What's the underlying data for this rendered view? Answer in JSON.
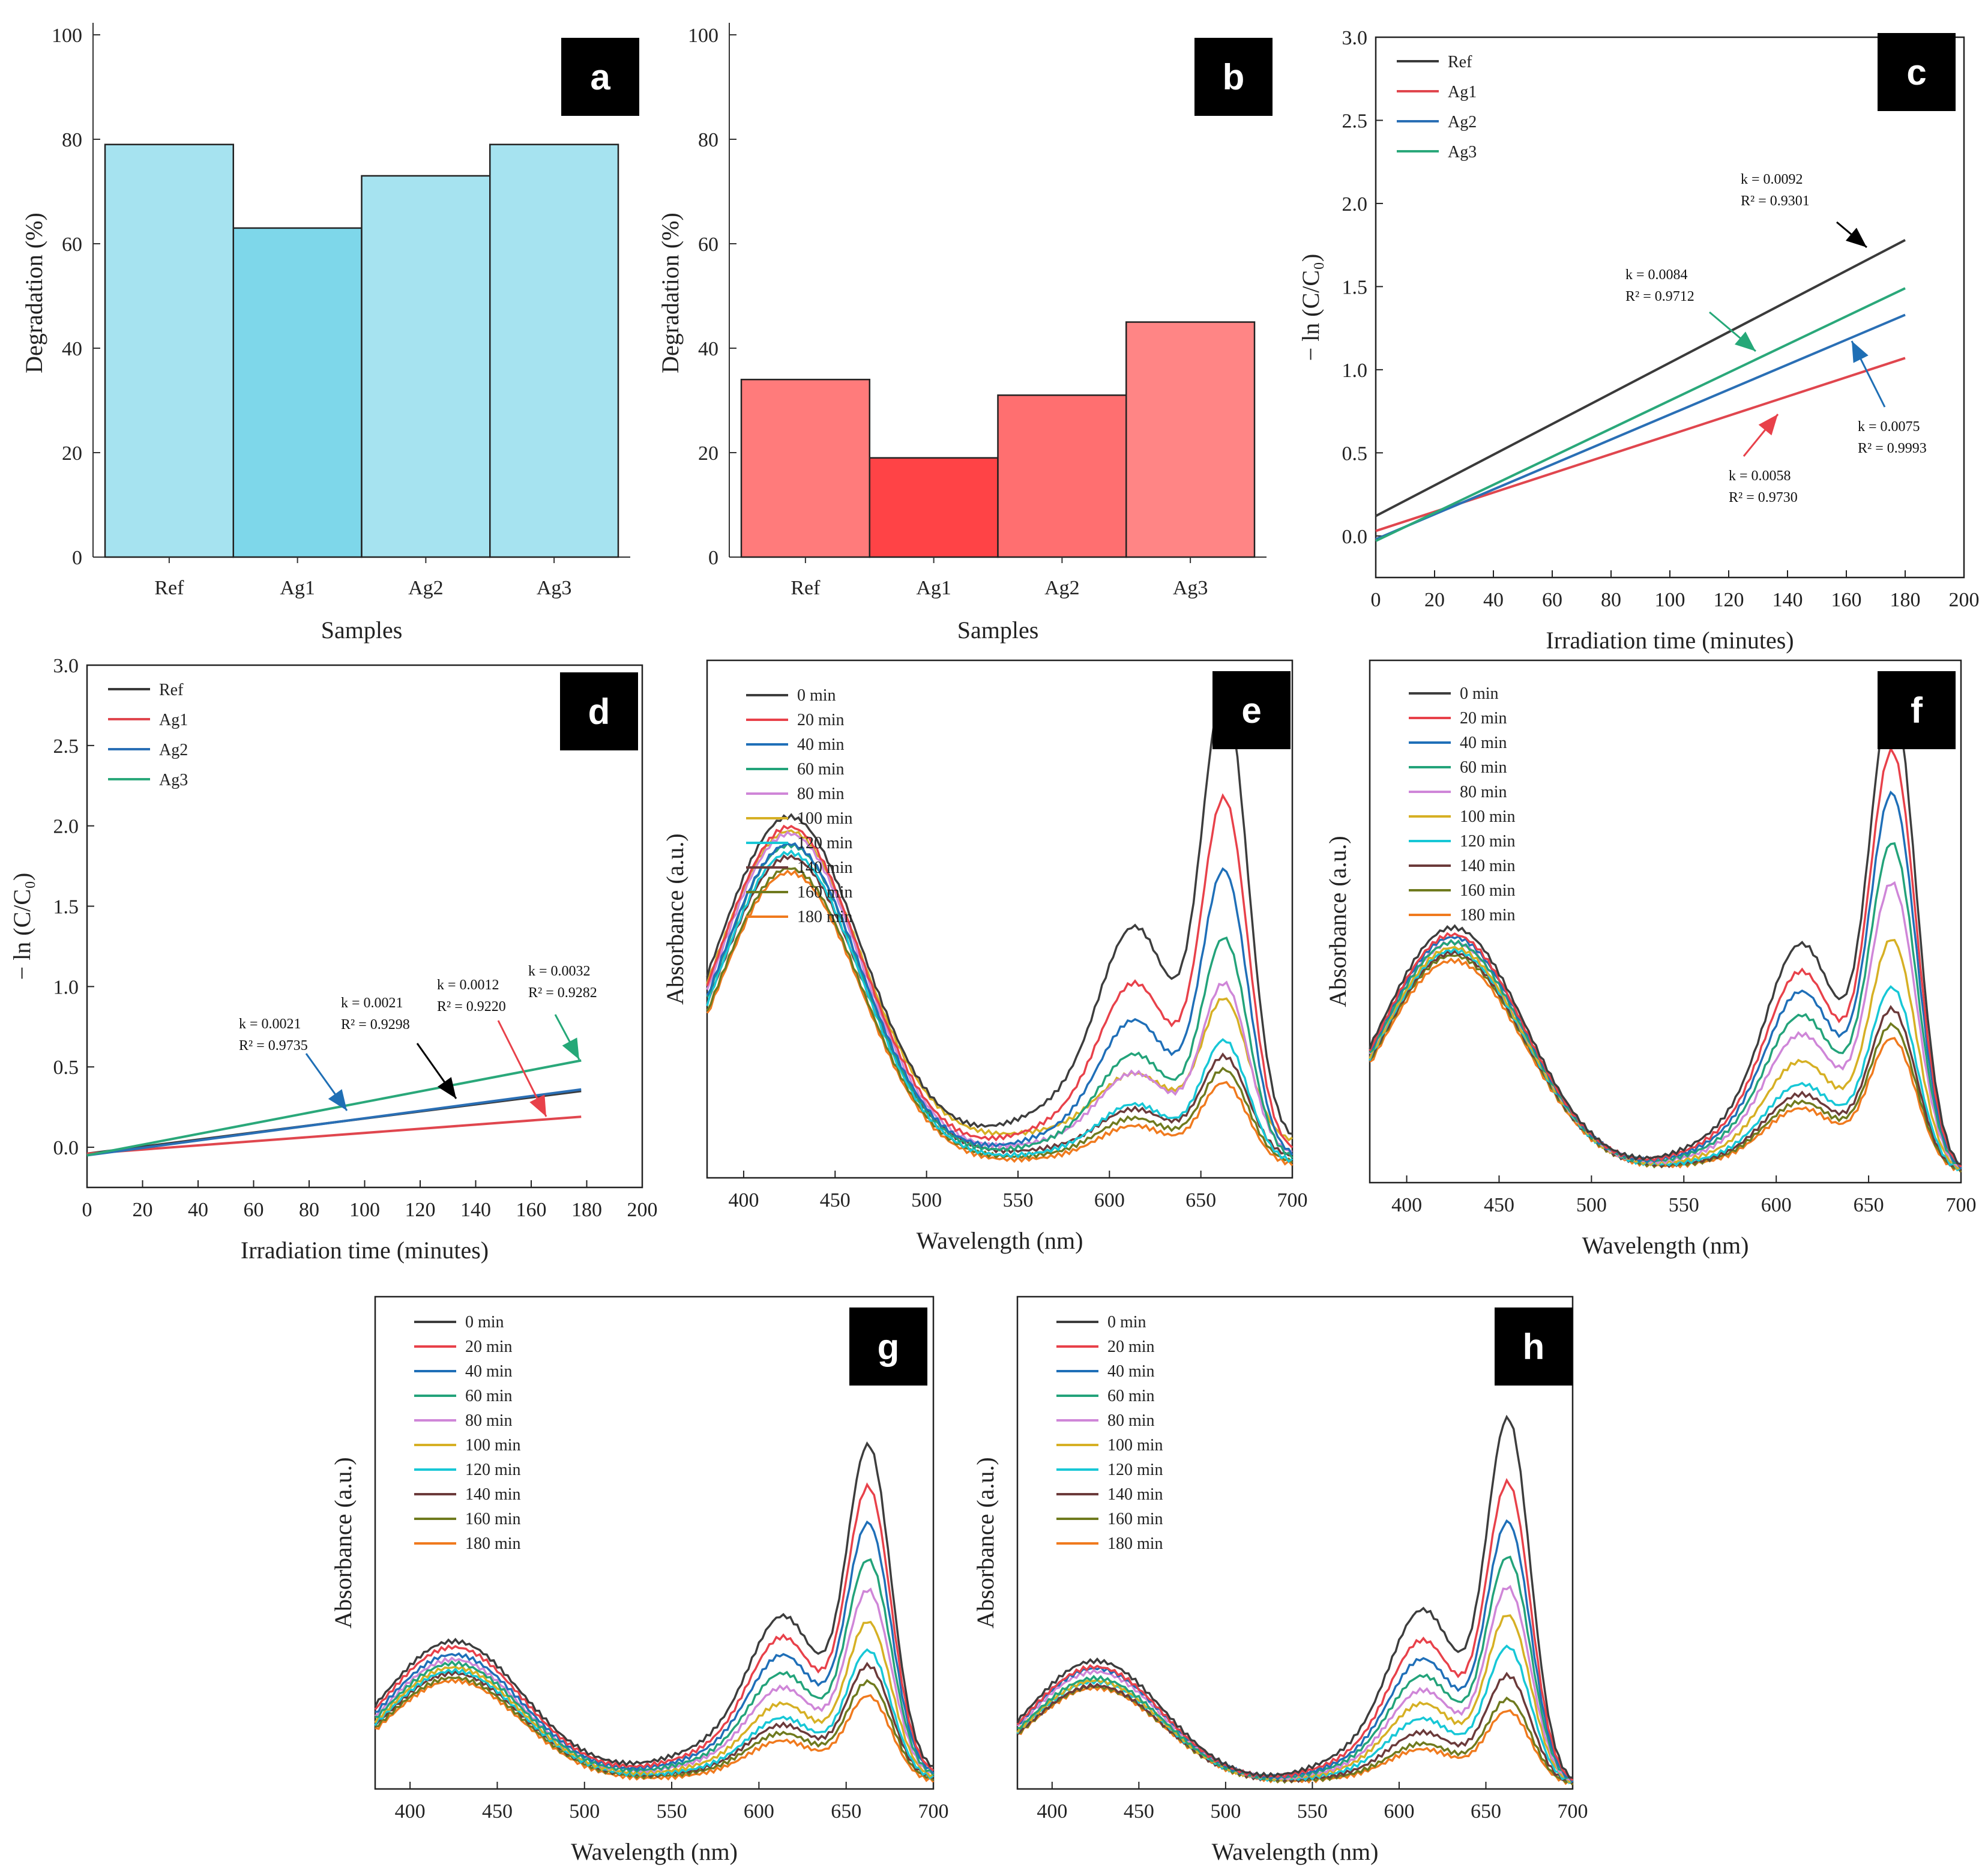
{
  "chart_data": [
    {
      "id": "a",
      "type": "bar",
      "badge": "a",
      "title": "",
      "xlabel": "Samples",
      "ylabel": "Degradation (%)",
      "categories": [
        "Ref",
        "Ag1",
        "Ag2",
        "Ag3"
      ],
      "values": [
        79,
        63,
        73,
        79
      ],
      "colors": [
        "#a6e3f0",
        "#7ed7ea",
        "#a6e3f0",
        "#a6e3f0"
      ],
      "ylim": [
        0,
        100
      ],
      "yticks": [
        "0",
        "20",
        "40",
        "60",
        "80",
        "100"
      ]
    },
    {
      "id": "b",
      "type": "bar",
      "badge": "b",
      "title": "",
      "xlabel": "Samples",
      "ylabel": "Degradation (%)",
      "categories": [
        "Ref",
        "Ag1",
        "Ag2",
        "Ag3"
      ],
      "values": [
        34,
        19,
        31,
        45
      ],
      "colors": [
        "#ff7b7b",
        "#ff4346",
        "#ff6f70",
        "#ff8585"
      ],
      "ylim": [
        0,
        100
      ],
      "yticks": [
        "0",
        "20",
        "40",
        "60",
        "80",
        "100"
      ]
    },
    {
      "id": "c",
      "type": "line",
      "badge": "c",
      "xlabel": "Irradiation time (minutes)",
      "ylabel": "− ln (C/C₀)",
      "xlim": [
        0,
        200
      ],
      "ylim": [
        -0.25,
        3.0
      ],
      "xticks": [
        "0",
        "20",
        "40",
        "60",
        "80",
        "100",
        "120",
        "140",
        "160",
        "180",
        "200"
      ],
      "yticks": [
        "0.0",
        "0.5",
        "1.0",
        "1.5",
        "2.0",
        "2.5",
        "3.0"
      ],
      "legend": [
        "Ref",
        "Ag1",
        "Ag2",
        "Ag3"
      ],
      "series": [
        {
          "name": "Ref",
          "color": "#3a3a3a",
          "x": [
            0,
            180
          ],
          "values": [
            0.12,
            1.78
          ]
        },
        {
          "name": "Ag1",
          "color": "#e0464e",
          "x": [
            0,
            180
          ],
          "values": [
            0.03,
            1.07
          ]
        },
        {
          "name": "Ag2",
          "color": "#2a6fb5",
          "x": [
            0,
            180
          ],
          "values": [
            -0.02,
            1.33
          ]
        },
        {
          "name": "Ag3",
          "color": "#2aa87a",
          "x": [
            0,
            180
          ],
          "values": [
            -0.03,
            1.49
          ]
        }
      ],
      "annotations": [
        {
          "k": "k = 0.0092",
          "r2": "R² = 0.9301"
        },
        {
          "k": "k = 0.0084",
          "r2": "R² = 0.9712"
        },
        {
          "k": "k = 0.0075",
          "r2": "R² = 0.9993"
        },
        {
          "k": "k = 0.0058",
          "r2": "R² = 0.9730"
        }
      ]
    },
    {
      "id": "d",
      "type": "line",
      "badge": "d",
      "xlabel": "Irradiation time (minutes)",
      "ylabel": "− ln (C/C₀)",
      "xlim": [
        0,
        200
      ],
      "ylim": [
        -0.25,
        3.0
      ],
      "xticks": [
        "0",
        "20",
        "40",
        "60",
        "80",
        "100",
        "120",
        "140",
        "160",
        "180",
        "200"
      ],
      "yticks": [
        "0.0",
        "0.5",
        "1.0",
        "1.5",
        "2.0",
        "2.5",
        "3.0"
      ],
      "legend": [
        "Ref",
        "Ag1",
        "Ag2",
        "Ag3"
      ],
      "series": [
        {
          "name": "Ref",
          "color": "#3a3a3a",
          "x": [
            0,
            178
          ],
          "values": [
            -0.04,
            0.35
          ]
        },
        {
          "name": "Ag1",
          "color": "#e0464e",
          "x": [
            0,
            178
          ],
          "values": [
            -0.04,
            0.19
          ]
        },
        {
          "name": "Ag2",
          "color": "#2a6fb5",
          "x": [
            0,
            178
          ],
          "values": [
            -0.05,
            0.36
          ]
        },
        {
          "name": "Ag3",
          "color": "#2aa87a",
          "x": [
            0,
            178
          ],
          "values": [
            -0.05,
            0.54
          ]
        }
      ],
      "annotations": [
        {
          "k": "k = 0.0021",
          "r2": "R² = 0.9735"
        },
        {
          "k": "k = 0.0021",
          "r2": "R² = 0.9298"
        },
        {
          "k": "k = 0.0012",
          "r2": "R² = 0.9220"
        },
        {
          "k": "k = 0.0032",
          "r2": "R² = 0.9282"
        }
      ]
    },
    {
      "id": "e",
      "type": "line",
      "badge": "e",
      "xlabel": "Wavelength (nm)",
      "ylabel": "Absorbance (a.u.)",
      "xlim": [
        380,
        700
      ],
      "ylim": [
        0,
        1
      ],
      "xticks": [
        "400",
        "450",
        "500",
        "550",
        "600",
        "650",
        "700"
      ],
      "legend": [
        "0 min",
        "20 min",
        "40 min",
        "60 min",
        "80 min",
        "100 min",
        "120 min",
        "140 min",
        "160 min",
        "180 min"
      ],
      "colors": [
        "#3d3d3d",
        "#e8414a",
        "#1f6fb8",
        "#23a37a",
        "#cf86d8",
        "#d6b024",
        "#17c7d6",
        "#6b3a3a",
        "#6f7a1e",
        "#f07a1e"
      ],
      "spectra": {
        "uv_peak": [
          0.628,
          0.628,
          0.605,
          0.608,
          0.62,
          0.6,
          0.598,
          0.58,
          0.568,
          0.565
        ],
        "vis_peak": [
          0.85,
          0.668,
          0.542,
          0.418,
          0.323,
          0.27,
          0.23,
          0.19,
          0.175,
          0.155
        ],
        "valley": [
          0.07,
          0.05,
          0.04,
          0.035,
          0.045,
          0.07,
          0.03,
          0.04,
          0.03,
          0.025
        ]
      }
    },
    {
      "id": "f",
      "type": "line",
      "badge": "f",
      "xlabel": "Wavelength (nm)",
      "ylabel": "Absorbance (a.u.)",
      "xlim": [
        380,
        700
      ],
      "ylim": [
        0,
        1
      ],
      "xticks": [
        "400",
        "450",
        "500",
        "550",
        "600",
        "650",
        "700"
      ],
      "legend": [
        "0 min",
        "20 min",
        "40 min",
        "60 min",
        "80 min",
        "100 min",
        "120 min",
        "140 min",
        "160 min",
        "180 min"
      ],
      "colors": [
        "#3d3d3d",
        "#e8414a",
        "#1f6fb8",
        "#23a37a",
        "#cf86d8",
        "#d6b024",
        "#17c7d6",
        "#6b3a3a",
        "#6f7a1e",
        "#f07a1e"
      ],
      "spectra": {
        "uv_peak": [
          0.468,
          0.455,
          0.45,
          0.44,
          0.44,
          0.43,
          0.425,
          0.42,
          0.415,
          0.405
        ],
        "vis_peak": [
          0.895,
          0.787,
          0.708,
          0.615,
          0.54,
          0.435,
          0.345,
          0.305,
          0.275,
          0.25
        ],
        "valley": [
          0.02,
          0.02,
          0.02,
          0.02,
          0.02,
          0.02,
          0.02,
          0.02,
          0.02,
          0.02
        ]
      }
    },
    {
      "id": "g",
      "type": "line",
      "badge": "g",
      "xlabel": "Wavelength (nm)",
      "ylabel": "Absorbance (a.u.)",
      "xlim": [
        380,
        700
      ],
      "ylim": [
        0,
        1
      ],
      "xticks": [
        "400",
        "450",
        "500",
        "550",
        "600",
        "650",
        "700"
      ],
      "legend": [
        "0 min",
        "20 min",
        "40 min",
        "60 min",
        "80 min",
        "100 min",
        "120 min",
        "140 min",
        "160 min",
        "180 min"
      ],
      "colors": [
        "#3d3d3d",
        "#e8414a",
        "#1f6fb8",
        "#23a37a",
        "#cf86d8",
        "#d6b024",
        "#17c7d6",
        "#6b3a3a",
        "#6f7a1e",
        "#f07a1e"
      ],
      "spectra": {
        "uv_peak": [
          0.265,
          0.258,
          0.245,
          0.23,
          0.238,
          0.225,
          0.22,
          0.215,
          0.208,
          0.205
        ],
        "vis_peak": [
          0.648,
          0.57,
          0.5,
          0.43,
          0.37,
          0.31,
          0.255,
          0.225,
          0.195,
          0.17
        ],
        "valley": [
          0.035,
          0.03,
          0.028,
          0.025,
          0.025,
          0.022,
          0.02,
          0.02,
          0.018,
          0.015
        ]
      }
    },
    {
      "id": "h",
      "type": "line",
      "badge": "h",
      "xlabel": "Wavelength (nm)",
      "ylabel": "Absorbance (a.u.)",
      "xlim": [
        380,
        700
      ],
      "ylim": [
        0,
        1
      ],
      "xticks": [
        "400",
        "450",
        "500",
        "550",
        "600",
        "650",
        "700"
      ],
      "legend": [
        "0 min",
        "20 min",
        "40 min",
        "60 min",
        "80 min",
        "100 min",
        "120 min",
        "140 min",
        "160 min",
        "180 min"
      ],
      "colors": [
        "#3d3d3d",
        "#e8414a",
        "#1f6fb8",
        "#23a37a",
        "#cf86d8",
        "#d6b024",
        "#17c7d6",
        "#6b3a3a",
        "#6f7a1e",
        "#f07a1e"
      ],
      "spectra": {
        "uv_peak": [
          0.25,
          0.238,
          0.235,
          0.215,
          0.228,
          0.21,
          0.208,
          0.2,
          0.198,
          0.195
        ],
        "vis_peak": [
          0.725,
          0.598,
          0.52,
          0.45,
          0.39,
          0.335,
          0.272,
          0.215,
          0.168,
          0.145
        ],
        "valley": [
          0.01,
          0.01,
          0.01,
          0.01,
          0.01,
          0.01,
          0.01,
          0.01,
          0.01,
          0.01
        ]
      }
    }
  ]
}
